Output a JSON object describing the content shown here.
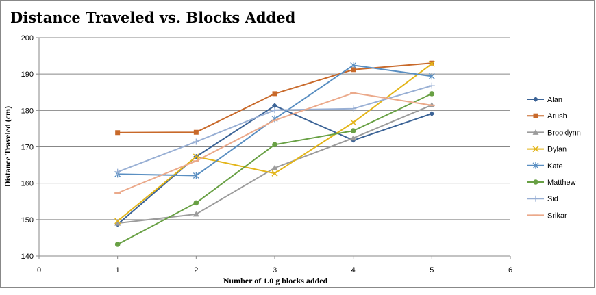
{
  "chart_data": {
    "type": "line",
    "title": "Distance Traveled vs. Blocks Added",
    "xlabel": "Number of 1.0 g blocks added",
    "ylabel": "Distance Traveled (cm)",
    "xlim": [
      0,
      6
    ],
    "ylim": [
      140,
      200
    ],
    "x_ticks": [
      0,
      1,
      2,
      3,
      4,
      5,
      6
    ],
    "y_ticks": [
      140,
      150,
      160,
      170,
      180,
      190,
      200
    ],
    "grid": "horizontal major gridlines",
    "legend": "right",
    "x": [
      1,
      2,
      3,
      4,
      5
    ],
    "series": [
      {
        "name": "Alan",
        "values": [
          148.7,
          167.3,
          181.3,
          171.8,
          179.1
        ],
        "color": "#3B6396",
        "marker": "diamond"
      },
      {
        "name": "Arush",
        "values": [
          173.9,
          174.0,
          184.6,
          191.2,
          193.0
        ],
        "color": "#C8692A",
        "marker": "square"
      },
      {
        "name": "Brooklynn",
        "values": [
          149.0,
          151.5,
          164.2,
          172.4,
          181.5
        ],
        "color": "#9C9C9C",
        "marker": "triangle"
      },
      {
        "name": "Dylan",
        "values": [
          149.6,
          167.3,
          162.7,
          176.7,
          192.8
        ],
        "color": "#E3B519",
        "marker": "x"
      },
      {
        "name": "Kate",
        "values": [
          162.5,
          162.1,
          177.7,
          192.4,
          189.4
        ],
        "color": "#5A8FC2",
        "marker": "star"
      },
      {
        "name": "Matthew",
        "values": [
          143.2,
          154.6,
          170.6,
          174.4,
          184.6
        ],
        "color": "#68A044",
        "marker": "circle"
      },
      {
        "name": "Sid",
        "values": [
          163.1,
          171.4,
          180.1,
          180.5,
          186.8
        ],
        "color": "#98AFD4",
        "marker": "plus"
      },
      {
        "name": "Srikar",
        "values": [
          157.3,
          166.1,
          177.3,
          184.8,
          181.4
        ],
        "color": "#EBA98A",
        "marker": "dash"
      }
    ]
  }
}
